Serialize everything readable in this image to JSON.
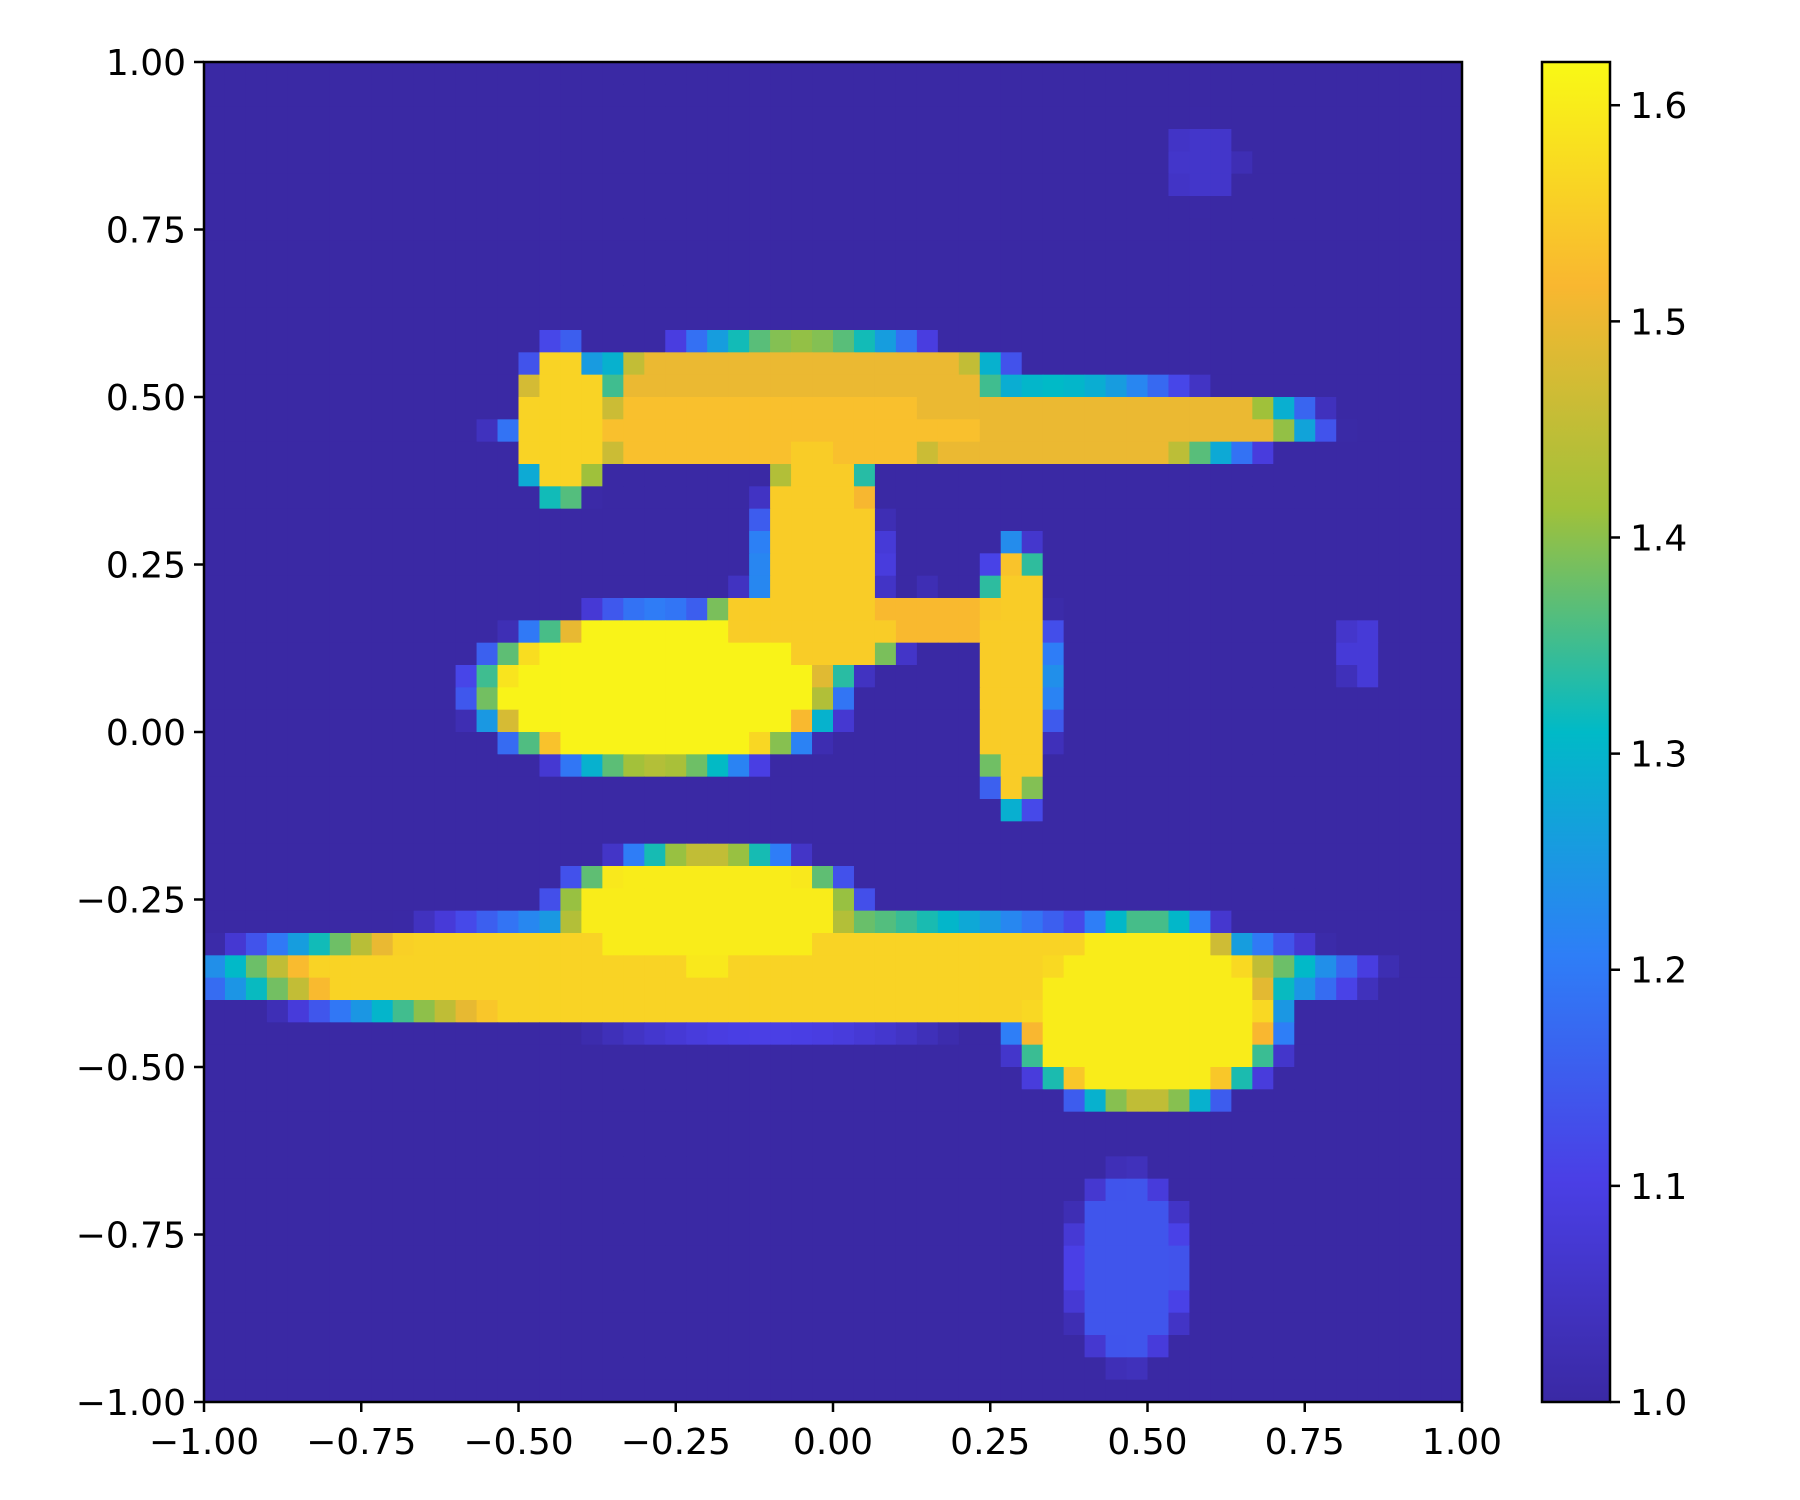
{
  "chart_data": {
    "type": "heatmap",
    "title": "",
    "xlabel": "",
    "ylabel": "",
    "xlim": [
      -1.0,
      1.0
    ],
    "ylim": [
      -1.0,
      1.0
    ],
    "x_ticks": [
      -1.0,
      -0.75,
      -0.5,
      -0.25,
      0.0,
      0.25,
      0.5,
      0.75,
      1.0
    ],
    "y_ticks": [
      -1.0,
      -0.75,
      -0.5,
      -0.25,
      0.0,
      0.25,
      0.5,
      0.75,
      1.0
    ],
    "x_tick_labels": [
      "−1.00",
      "−0.75",
      "−0.50",
      "−0.25",
      "0.00",
      "0.25",
      "0.50",
      "0.75",
      "1.00"
    ],
    "y_tick_labels": [
      "−1.00",
      "−0.75",
      "−0.50",
      "−0.25",
      "0.00",
      "0.25",
      "0.50",
      "0.75",
      "1.00"
    ],
    "colorbar": {
      "range": [
        1.0,
        1.62
      ],
      "ticks": [
        1.0,
        1.1,
        1.2,
        1.3,
        1.4,
        1.5,
        1.6
      ],
      "tick_labels": [
        "1.0",
        "1.1",
        "1.2",
        "1.3",
        "1.4",
        "1.5",
        "1.6"
      ],
      "colors": [
        "#3a29a4",
        "#4a3fe6",
        "#2e7ef7",
        "#00bac7",
        "#a0c13a",
        "#f9b730",
        "#f9f915"
      ]
    },
    "grid": false,
    "resolution": 60,
    "background_value": 1.0,
    "regions": [
      {
        "shape": "ellipse",
        "cx": -0.43,
        "cy": 0.46,
        "rx": 0.06,
        "ry": 0.1,
        "value": 1.56
      },
      {
        "shape": "ellipse",
        "cx": -0.05,
        "cy": 0.53,
        "rx": 0.28,
        "ry": 0.05,
        "value": 1.5
      },
      {
        "shape": "ellipse",
        "cx": 0.35,
        "cy": 0.46,
        "rx": 0.35,
        "ry": 0.05,
        "value": 1.5
      },
      {
        "shape": "ellipse",
        "cx": -0.1,
        "cy": 0.45,
        "rx": 0.34,
        "ry": 0.045,
        "value": 1.53
      },
      {
        "shape": "ellipse",
        "cx": -0.02,
        "cy": 0.26,
        "rx": 0.08,
        "ry": 0.17,
        "value": 1.55
      },
      {
        "shape": "ellipse",
        "cx": -0.28,
        "cy": 0.06,
        "rx": 0.24,
        "ry": 0.1,
        "value": 1.61
      },
      {
        "shape": "ellipse",
        "cx": -0.05,
        "cy": 0.15,
        "rx": 0.14,
        "ry": 0.06,
        "value": 1.55
      },
      {
        "shape": "ellipse",
        "cx": 0.15,
        "cy": 0.17,
        "rx": 0.12,
        "ry": 0.035,
        "value": 1.52
      },
      {
        "shape": "ellipse",
        "cx": 0.29,
        "cy": 0.08,
        "rx": 0.05,
        "ry": 0.17,
        "value": 1.55
      },
      {
        "shape": "ellipse",
        "cx": -0.2,
        "cy": -0.27,
        "rx": 0.2,
        "ry": 0.08,
        "value": 1.6
      },
      {
        "shape": "ellipse",
        "cx": -0.1,
        "cy": -0.36,
        "rx": 0.74,
        "ry": 0.07,
        "value": 1.56
      },
      {
        "shape": "ellipse",
        "cx": 0.5,
        "cy": -0.42,
        "rx": 0.18,
        "ry": 0.12,
        "value": 1.6
      },
      {
        "shape": "ellipse",
        "cx": 0.47,
        "cy": -0.8,
        "rx": 0.08,
        "ry": 0.12,
        "value": 1.14
      },
      {
        "shape": "ellipse",
        "cx": 0.59,
        "cy": 0.85,
        "rx": 0.05,
        "ry": 0.05,
        "value": 1.06
      },
      {
        "shape": "ellipse",
        "cx": 0.84,
        "cy": 0.12,
        "rx": 0.03,
        "ry": 0.04,
        "value": 1.08
      }
    ]
  }
}
